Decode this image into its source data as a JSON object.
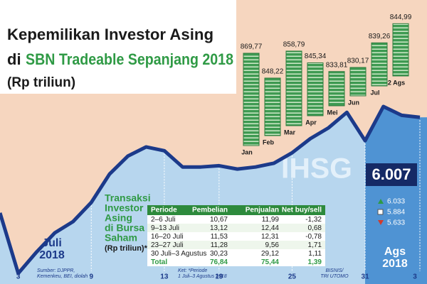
{
  "title": {
    "line1": "Kepemilikan Investor Asing",
    "line2_prefix": "di",
    "line2_highlight": "SBN Tradeable Sepanjang 2018",
    "unit": "(Rp triliun)"
  },
  "chart_data": [
    {
      "type": "bar",
      "categories": [
        "Jan",
        "Feb",
        "Mar",
        "Apr",
        "Mei",
        "Jun",
        "Jul",
        "2 Ags"
      ],
      "values": [
        869.77,
        848.22,
        858.79,
        845.34,
        833.81,
        830.17,
        839.26,
        844.99
      ],
      "value_labels": [
        "869,77",
        "848,22",
        "858,79",
        "845,34",
        "833,81",
        "830,17",
        "839,26",
        "844,99"
      ],
      "color": "#3f9a52"
    },
    {
      "type": "line",
      "title": "IHSG",
      "categories": [
        null,
        "3",
        null,
        null,
        null,
        "9",
        null,
        null,
        null,
        "13",
        null,
        null,
        "19",
        null,
        null,
        null,
        "25",
        null,
        null,
        null,
        "31",
        null,
        null,
        "3"
      ],
      "values": [
        5778,
        5633,
        5684,
        5730,
        5757,
        5803,
        5871,
        5914,
        5936,
        5927,
        5888,
        5888,
        5891,
        5883,
        5888,
        5897,
        5922,
        5956,
        5982,
        6019,
        5951,
        6033,
        6012,
        6007
      ],
      "color": "#1c3a8a",
      "current": {
        "value": 6007,
        "label": "6.007"
      },
      "stats": [
        {
          "value": 6033,
          "label": "6.033"
        },
        {
          "value": 5884,
          "label": "5.884"
        },
        {
          "value": 5633,
          "label": "5.633"
        }
      ],
      "periods": [
        {
          "month": "Juli",
          "year": "2018"
        },
        {
          "month": "Ags",
          "year": "2018"
        }
      ]
    }
  ],
  "table": {
    "title": [
      "Transaksi",
      "Investor",
      "Asing",
      "di Bursa",
      "Saham"
    ],
    "unit": "(Rp triliun)*",
    "header": [
      "Periode",
      "Pembelian",
      "Penjualan",
      "Net buy/sell"
    ],
    "rows": [
      [
        "2–6 Juli",
        "10,67",
        "11,99",
        "-1,32"
      ],
      [
        "9–13 Juli",
        "13,12",
        "12,44",
        "0,68"
      ],
      [
        "16–20 Juli",
        "11,53",
        "12,31",
        "-0,78"
      ],
      [
        "23–27 Juli",
        "11,28",
        "9,56",
        "1,71"
      ],
      [
        "30 Juli–3 Agustus",
        "30,23",
        "29,12",
        "1,11"
      ]
    ],
    "total": [
      "Total",
      "76,84",
      "75,44",
      "1,39"
    ]
  },
  "notes": {
    "source": [
      "Sumber: DJPPR,",
      "Kemenkeu, BEI, diolah"
    ],
    "remark": [
      "Ket: *Periode",
      "1 Juli–3 Agustus 2018"
    ],
    "credit": [
      "BISNIS/",
      "TRI UTOMO"
    ]
  }
}
